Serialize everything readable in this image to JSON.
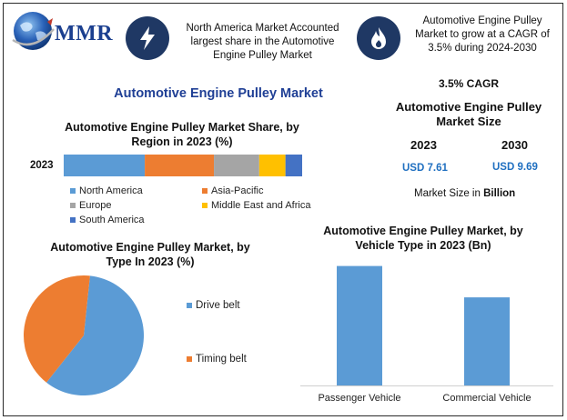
{
  "brand": {
    "name": "MMR"
  },
  "info_boxes": {
    "box1": {
      "icon": "lightning-bolt-icon",
      "text": "North America Market Accounted largest share in the Automotive Engine Pulley Market"
    },
    "box2": {
      "icon": "flame-icon",
      "text": "Automotive Engine Pulley Market to grow at a CAGR of 3.5% during 2024-2030"
    }
  },
  "main_title": "Automotive Engine Pulley Market",
  "market_size": {
    "cagr": "3.5% CAGR",
    "title": "Automotive Engine Pulley Market Size",
    "year1": "2023",
    "year2": "2030",
    "value1": "USD 7.61",
    "value2": "USD 9.69",
    "unit_prefix": "Market Size in ",
    "unit_bold": "Billion"
  },
  "colors": {
    "navy": "#1f3864",
    "north_america": "#5b9bd5",
    "asia_pacific": "#ed7d31",
    "europe": "#a5a5a5",
    "middle_east_africa": "#ffc000",
    "south_america": "#4472c4"
  },
  "chart_data": [
    {
      "type": "bar",
      "orientation": "horizontal-stacked",
      "title": "Automotive Engine Pulley Market Share, by Region in 2023 (%)",
      "categories": [
        "2023"
      ],
      "series": [
        {
          "name": "North America",
          "values": [
            34
          ],
          "color": "#5b9bd5"
        },
        {
          "name": "Asia-Pacific",
          "values": [
            29
          ],
          "color": "#ed7d31"
        },
        {
          "name": "Europe",
          "values": [
            19
          ],
          "color": "#a5a5a5"
        },
        {
          "name": "Middle East and Africa",
          "values": [
            11
          ],
          "color": "#ffc000"
        },
        {
          "name": "South America",
          "values": [
            7
          ],
          "color": "#4472c4"
        }
      ],
      "xlim": [
        0,
        100
      ]
    },
    {
      "type": "pie",
      "title": "Automotive Engine Pulley Market, by Type In 2023 (%)",
      "labels": [
        "Drive belt",
        "Timing belt"
      ],
      "values": [
        59,
        41
      ],
      "colors": [
        "#5b9bd5",
        "#ed7d31"
      ]
    },
    {
      "type": "bar",
      "title": "Automotive Engine Pulley Market, by Vehicle Type in 2023 (Bn)",
      "categories": [
        "Passenger Vehicle",
        "Commercial Vehicle"
      ],
      "values": [
        4.38,
        3.23
      ],
      "color": "#5b9bd5",
      "ylim": [
        0,
        4.8
      ]
    }
  ]
}
